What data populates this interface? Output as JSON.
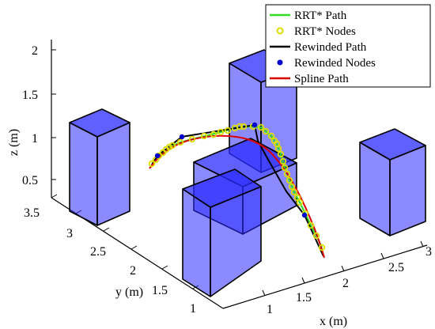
{
  "chart_data": {
    "type": "3d-scatter-line",
    "title": "",
    "xlabel": "x (m)",
    "ylabel": "y (m)",
    "zlabel": "z (m)",
    "x_ticks": [
      "1",
      "1.5",
      "2",
      "2.5",
      "3"
    ],
    "y_ticks": [
      "1",
      "1.5",
      "2",
      "2.5",
      "3",
      "3.5"
    ],
    "z_ticks": [
      "0.5",
      "1",
      "1.5",
      "2"
    ],
    "xlim": [
      0.75,
      3.0
    ],
    "ylim": [
      0.9,
      3.5
    ],
    "zlim": [
      0.3,
      2.1
    ],
    "grid": false,
    "legend_position": "top-right",
    "legend": [
      {
        "label": "RRT* Path",
        "color": "#33dd22",
        "marker": "line"
      },
      {
        "label": "RRT* Nodes",
        "color": "#dddd00",
        "marker": "open-circle"
      },
      {
        "label": "Rewinded Path",
        "color": "#000000",
        "marker": "line"
      },
      {
        "label": "Rewinded Nodes",
        "color": "#0000cc",
        "marker": "dot"
      },
      {
        "label": "Spline Path",
        "color": "#dd0000",
        "marker": "line"
      }
    ],
    "obstacles": [
      {
        "name": "left-box",
        "x": [
          0.5,
          0.8
        ],
        "y": [
          2.6,
          2.9
        ],
        "z": [
          0.0,
          0.8
        ]
      },
      {
        "name": "tall-box",
        "x": [
          1.7,
          1.9
        ],
        "y": [
          3.0,
          3.3
        ],
        "z": [
          0.0,
          1.4
        ]
      },
      {
        "name": "front-box-lower",
        "x": [
          1.1,
          1.7
        ],
        "y": [
          1.5,
          1.8
        ],
        "z": [
          0.0,
          0.8
        ]
      },
      {
        "name": "front-box-upper",
        "x": [
          1.3,
          1.9
        ],
        "y": [
          2.0,
          2.3
        ],
        "z": [
          0.0,
          0.6
        ]
      },
      {
        "name": "right-box",
        "x": [
          2.6,
          2.8
        ],
        "y": [
          2.6,
          2.9
        ],
        "z": [
          0.0,
          1.0
        ]
      }
    ]
  },
  "colors": {
    "box_face": "#2b2bff",
    "box_edge": "#000000",
    "rrt_path": "#33dd22",
    "rrt_nodes": "#dddd00",
    "rewinded_path": "#000000",
    "rewinded_nodes": "#0000cc",
    "spline_path": "#dd0000"
  }
}
